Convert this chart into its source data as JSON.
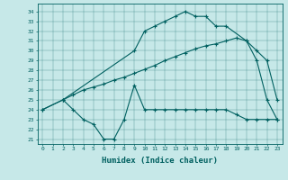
{
  "xlabel": "Humidex (Indice chaleur)",
  "bg_color": "#c6e8e8",
  "line_color": "#006060",
  "xlim": [
    -0.5,
    23.5
  ],
  "ylim": [
    20.5,
    34.8
  ],
  "yticks": [
    21,
    22,
    23,
    24,
    25,
    26,
    27,
    28,
    29,
    30,
    31,
    32,
    33,
    34
  ],
  "xticks": [
    0,
    1,
    2,
    3,
    4,
    5,
    6,
    7,
    8,
    9,
    10,
    11,
    12,
    13,
    14,
    15,
    16,
    17,
    18,
    19,
    20,
    21,
    22,
    23
  ],
  "series1_x": [
    0,
    2,
    3,
    4,
    5,
    6,
    7,
    8,
    9,
    10,
    11,
    12,
    13,
    14,
    15,
    16,
    17,
    18,
    19,
    20,
    21,
    22,
    23
  ],
  "series1_y": [
    24,
    25,
    24,
    23,
    22.5,
    21,
    21,
    23,
    26.5,
    24,
    24,
    24,
    24,
    24,
    24,
    24,
    24,
    24,
    23.5,
    23,
    23,
    23,
    23
  ],
  "series2_x": [
    0,
    2,
    3,
    4,
    5,
    6,
    7,
    8,
    9,
    10,
    11,
    12,
    13,
    14,
    15,
    16,
    17,
    18,
    19,
    20,
    21,
    22,
    23
  ],
  "series2_y": [
    24,
    25,
    25.5,
    26,
    26.3,
    26.6,
    27,
    27.3,
    27.7,
    28.1,
    28.5,
    29,
    29.4,
    29.8,
    30.2,
    30.5,
    30.7,
    31.0,
    31.3,
    31.0,
    30.0,
    29.0,
    25.0
  ],
  "series3_x": [
    2,
    9,
    10,
    11,
    12,
    13,
    14,
    15,
    16,
    17,
    18,
    20,
    21,
    22,
    23
  ],
  "series3_y": [
    25,
    30,
    32,
    32.5,
    33,
    33.5,
    34,
    33.5,
    33.5,
    32.5,
    32.5,
    31,
    29,
    25,
    23
  ]
}
